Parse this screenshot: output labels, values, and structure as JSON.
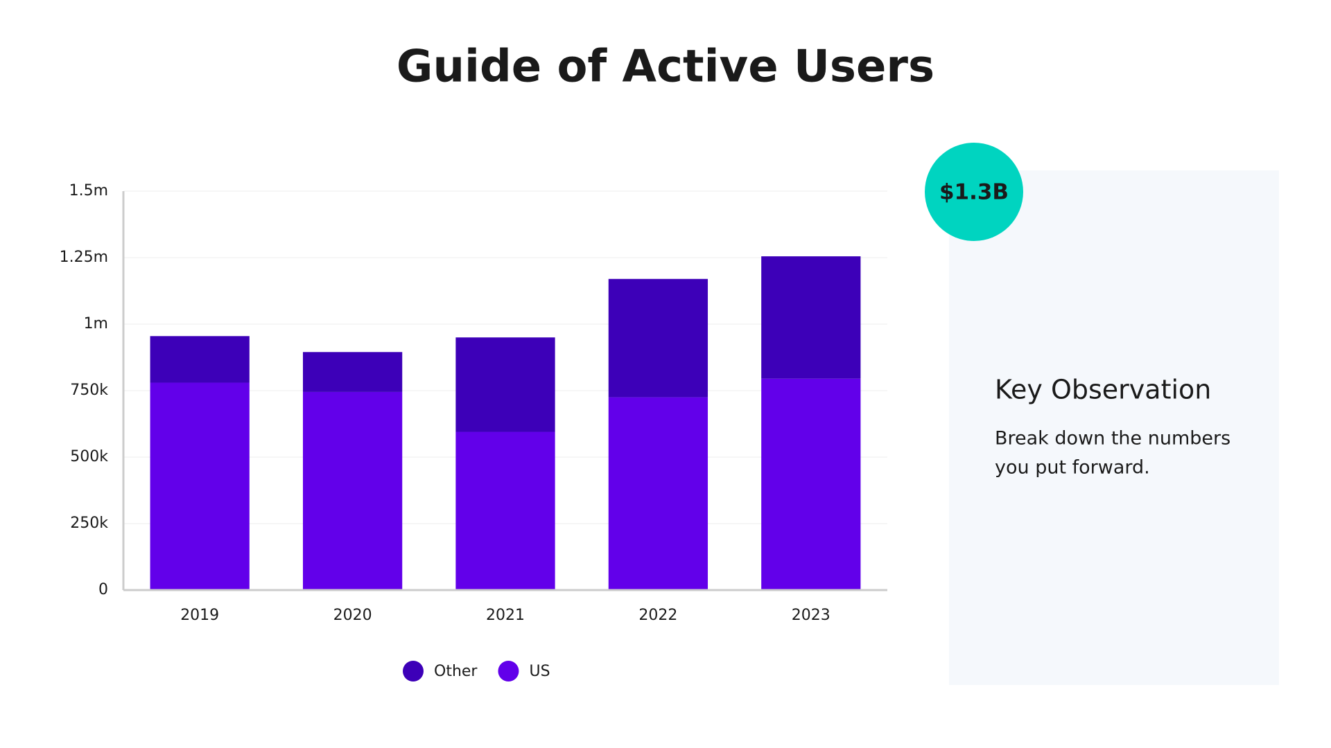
{
  "chart_data": {
    "type": "stacked_bar",
    "title": "Guide of Active Users",
    "categories": [
      "2019",
      "2020",
      "2021",
      "2022",
      "2023"
    ],
    "series": [
      {
        "name": "Other",
        "color": "#3d00b8",
        "values": [
          175000,
          150000,
          355000,
          445000,
          460000
        ]
      },
      {
        "name": "US",
        "color": "#6200ea",
        "values": [
          780000,
          745000,
          595000,
          725000,
          795000
        ]
      }
    ],
    "ylim": [
      0,
      1500000
    ],
    "yticks": [
      0,
      {
        "value": 250000,
        "label": "250k"
      },
      {
        "value": 500000,
        "label": "500k"
      },
      {
        "value": 750000,
        "label": "750k"
      },
      {
        "value": 1000000,
        "label": "1m"
      },
      {
        "value": 1250000,
        "label": "1.25m"
      },
      {
        "value": 1500000,
        "label": "1.5m"
      }
    ],
    "grid": true,
    "legend": "bottom"
  },
  "panel": {
    "badge": "$1.3B",
    "heading": "Key Observation",
    "body_lines": [
      "Break down the numbers",
      "you put forward."
    ]
  }
}
